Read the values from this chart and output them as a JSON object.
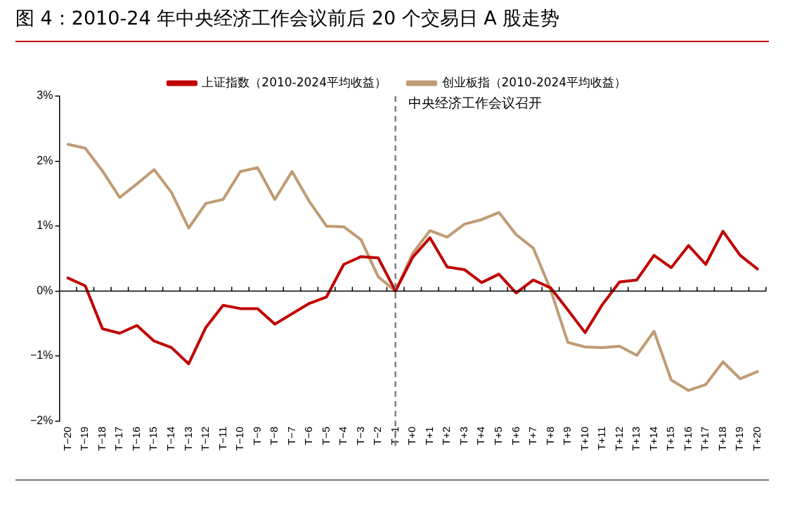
{
  "chart_data": {
    "type": "line",
    "title": "图 4：2010-24 年中央经济工作会议前后 20 个交易日 A 股走势",
    "categories": [
      "T−20",
      "T−19",
      "T−18",
      "T−17",
      "T−16",
      "T−15",
      "T−14",
      "T−13",
      "T−12",
      "T−11",
      "T−10",
      "T−9",
      "T−8",
      "T−7",
      "T−6",
      "T−5",
      "T−4",
      "T−3",
      "T−2",
      "T−1",
      "T+0",
      "T+1",
      "T+2",
      "T+3",
      "T+4",
      "T+5",
      "T+6",
      "T+7",
      "T+8",
      "T+9",
      "T+10",
      "T+11",
      "T+12",
      "T+13",
      "T+14",
      "T+15",
      "T+16",
      "T+17",
      "T+18",
      "T+19",
      "T+20"
    ],
    "series": [
      {
        "name": "上证指数（2010-2024平均收益）",
        "color": "#c00000",
        "values": [
          0.2,
          0.08,
          -0.58,
          -0.65,
          -0.53,
          -0.77,
          -0.87,
          -1.12,
          -0.56,
          -0.22,
          -0.27,
          -0.27,
          -0.51,
          -0.35,
          -0.19,
          -0.09,
          0.41,
          0.53,
          0.51,
          0,
          0.52,
          0.82,
          0.37,
          0.33,
          0.13,
          0.26,
          -0.03,
          0.17,
          0.05,
          -0.29,
          -0.64,
          -0.21,
          0.14,
          0.17,
          0.55,
          0.36,
          0.7,
          0.41,
          0.92,
          0.55,
          0.34
        ]
      },
      {
        "name": "创业板指（2010-2024平均收益）",
        "color": "#bf9b74",
        "values": [
          2.26,
          2.2,
          1.85,
          1.44,
          1.65,
          1.87,
          1.52,
          0.97,
          1.35,
          1.41,
          1.84,
          1.9,
          1.41,
          1.84,
          1.38,
          1.0,
          0.99,
          0.79,
          0.22,
          0,
          0.58,
          0.93,
          0.83,
          1.03,
          1.1,
          1.21,
          0.87,
          0.66,
          0.02,
          -0.79,
          -0.86,
          -0.87,
          -0.85,
          -0.99,
          -0.62,
          -1.37,
          -1.53,
          -1.44,
          -1.09,
          -1.35,
          -1.24
        ]
      }
    ],
    "ylim": [
      -2,
      3
    ],
    "yticks": [
      {
        "value": -2,
        "label": "−2%"
      },
      {
        "value": -1,
        "label": "−1%"
      },
      {
        "value": 0,
        "label": "0%"
      },
      {
        "value": 1,
        "label": "1%"
      },
      {
        "value": 2,
        "label": "2%"
      },
      {
        "value": 3,
        "label": "3%"
      }
    ],
    "ref_lines": [
      {
        "axis": "x",
        "value": "T−1",
        "label": "中央经济工作会议召开",
        "color": "#7f7f7f",
        "line_style": "dashed"
      }
    ],
    "grid": false,
    "legend": "top",
    "marker": "none",
    "line_style": "solid"
  }
}
